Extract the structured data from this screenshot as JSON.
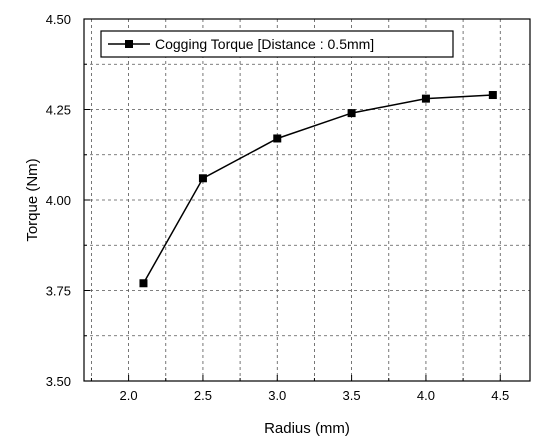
{
  "chart_data": {
    "type": "line",
    "title": "",
    "xlabel": "Radius (mm)",
    "ylabel": "Torque (Nm)",
    "xlim": [
      1.7,
      4.7
    ],
    "ylim": [
      3.5,
      4.5
    ],
    "x_ticks": [
      2.0,
      2.5,
      3.0,
      3.5,
      4.0,
      4.5
    ],
    "x_tick_labels": [
      "2.0",
      "2.5",
      "3.0",
      "3.5",
      "4.0",
      "4.5"
    ],
    "y_ticks": [
      3.5,
      3.75,
      4.0,
      4.25,
      4.5
    ],
    "y_tick_labels": [
      "3.50",
      "3.75",
      "4.00",
      "4.25",
      "4.50"
    ],
    "grid": true,
    "grid_style": "dashed",
    "legend_position": "top-left",
    "series": [
      {
        "name": "Cogging Torque [Distance : 0.5mm]",
        "color": "#000000",
        "marker": "square",
        "x": [
          2.1,
          2.5,
          3.0,
          3.5,
          4.0,
          4.45
        ],
        "y": [
          3.77,
          4.06,
          4.17,
          4.24,
          4.28,
          4.29
        ]
      }
    ]
  }
}
